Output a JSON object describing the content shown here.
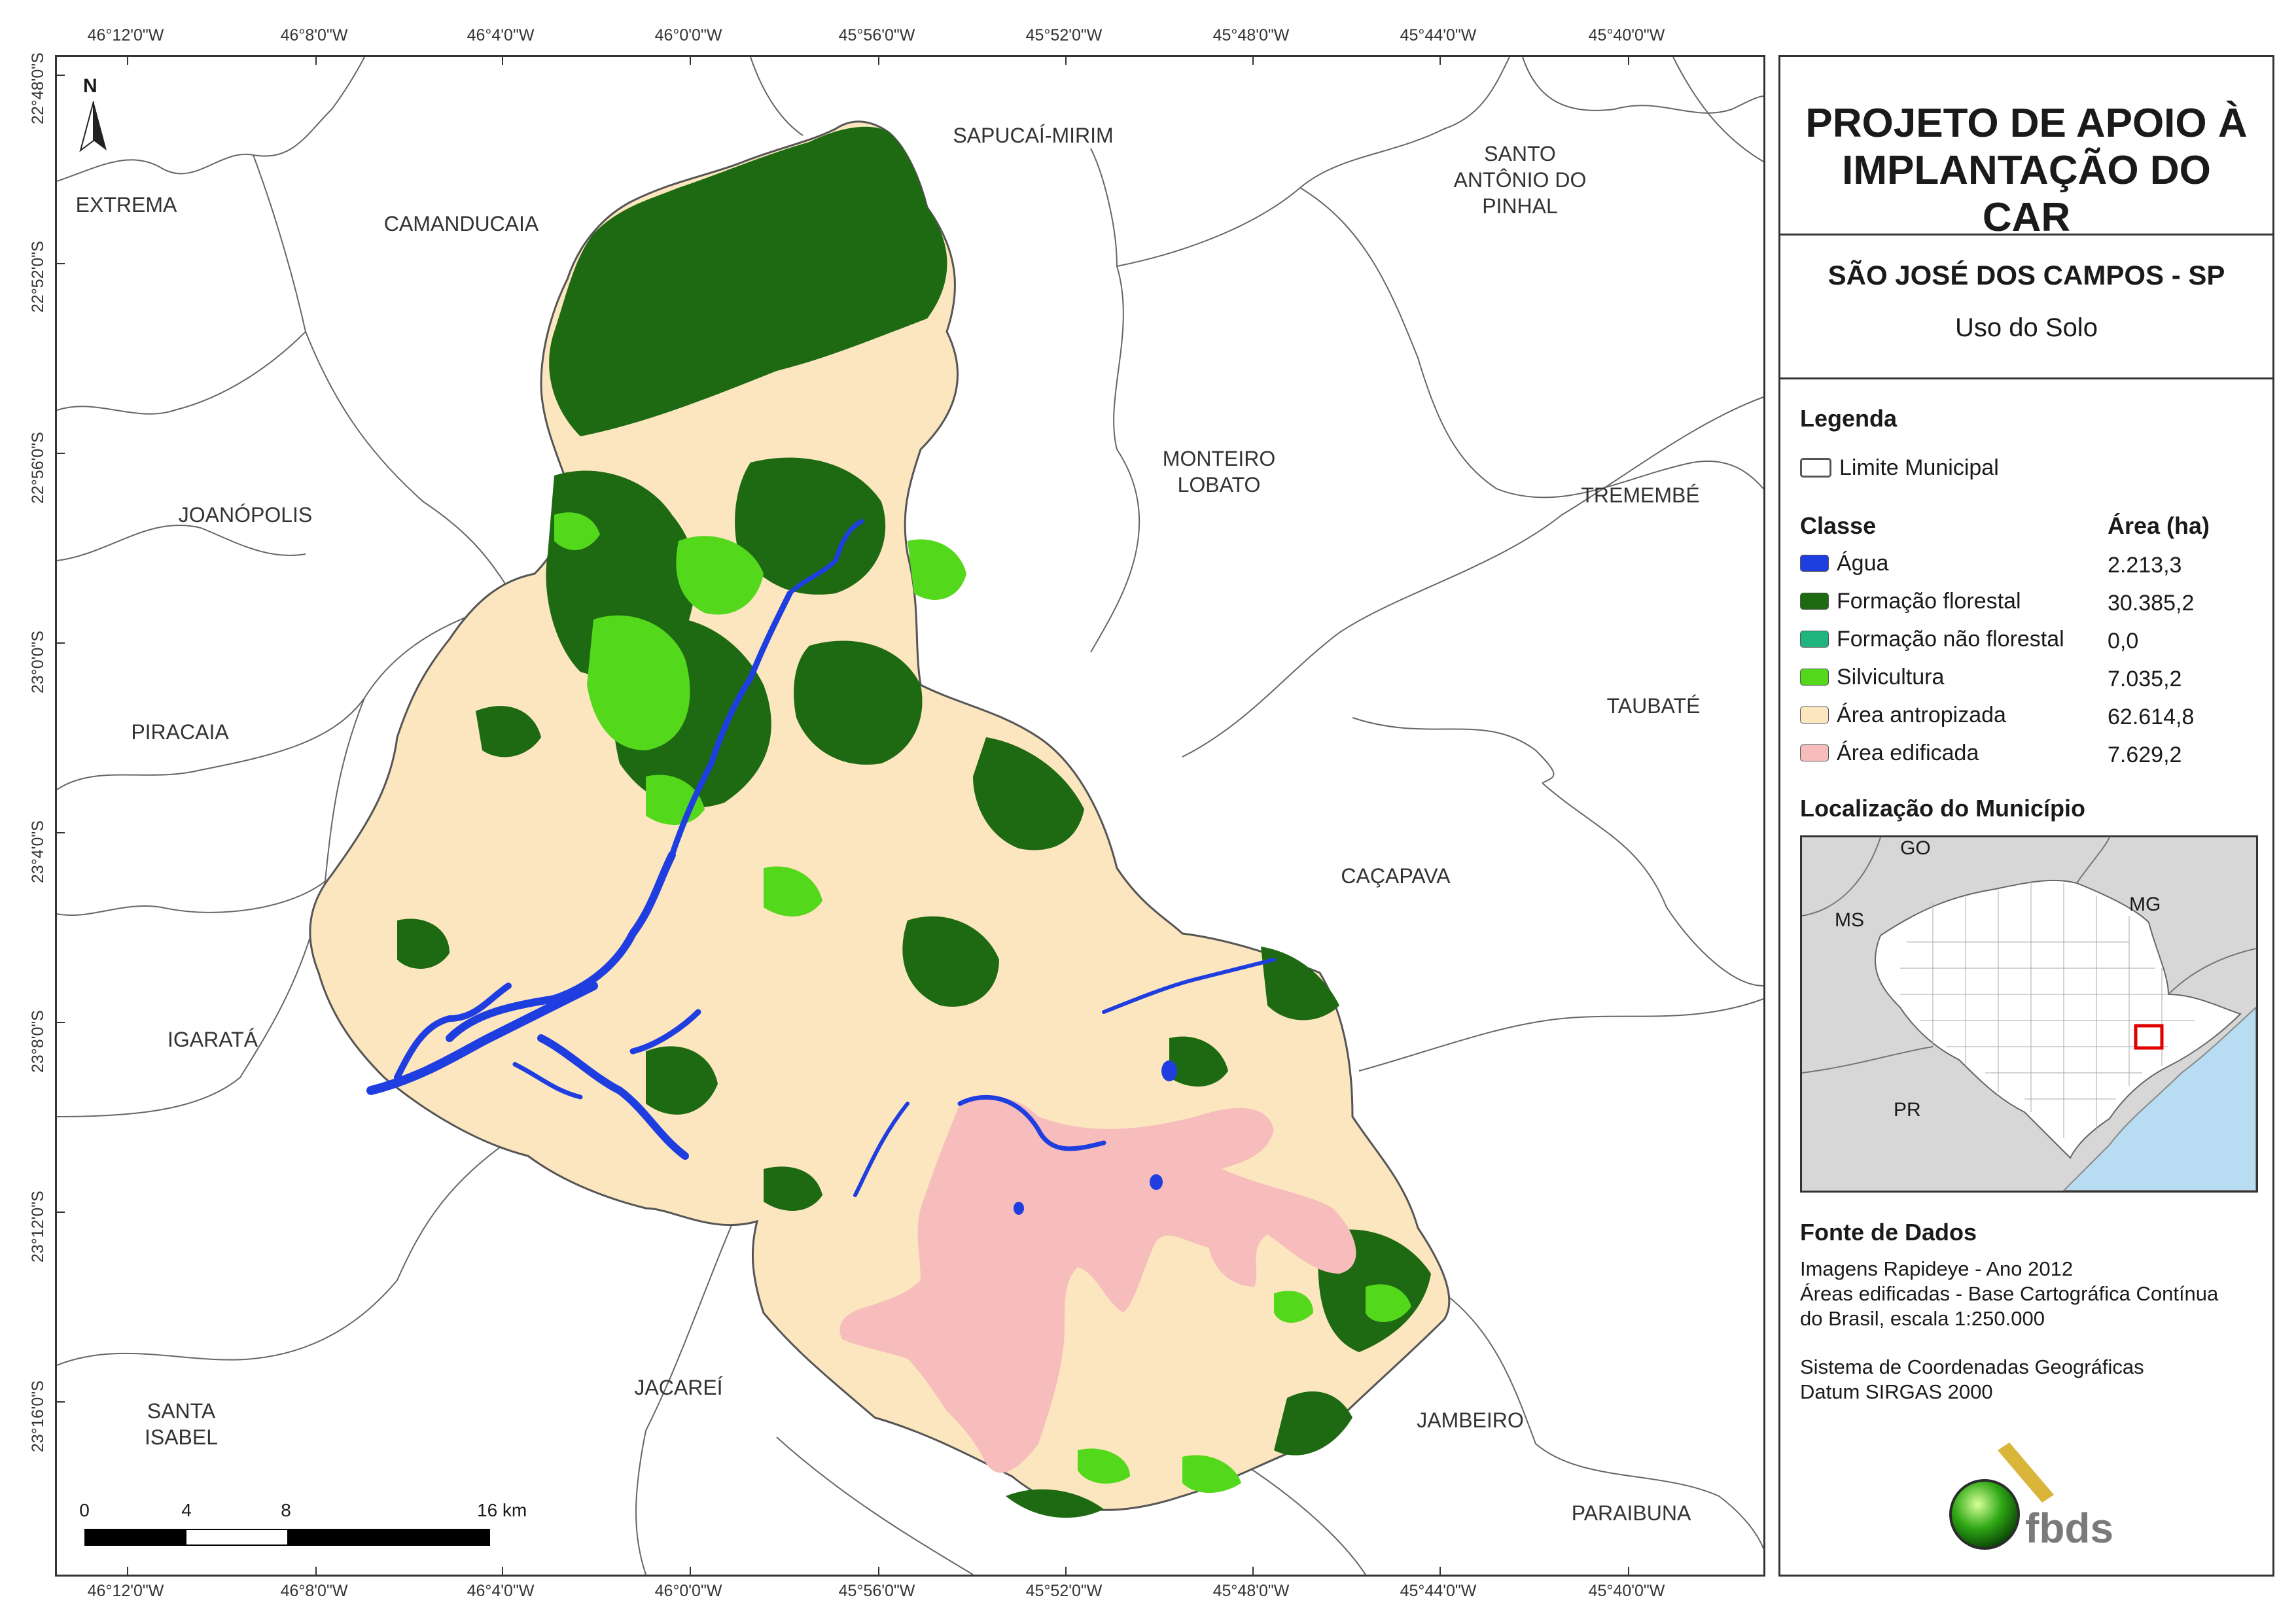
{
  "coords": {
    "top": [
      "46°12'0\"W",
      "46°8'0\"W",
      "46°4'0\"W",
      "46°0'0\"W",
      "45°56'0\"W",
      "45°52'0\"W",
      "45°48'0\"W",
      "45°44'0\"W",
      "45°40'0\"W"
    ],
    "bottom": [
      "46°12'0\"W",
      "46°8'0\"W",
      "46°4'0\"W",
      "46°0'0\"W",
      "45°56'0\"W",
      "45°52'0\"W",
      "45°48'0\"W",
      "45°44'0\"W",
      "45°40'0\"W"
    ],
    "left": [
      "22°48'0\"S",
      "22°52'0\"S",
      "22°56'0\"S",
      "23°0'0\"S",
      "23°4'0\"S",
      "23°8'0\"S",
      "23°12'0\"S",
      "23°16'0\"S"
    ]
  },
  "municipalities": [
    "SAPUCAÍ-MIRIM",
    "SANTO\nANTÔNIO DO\nPINHAL",
    "EXTREMA",
    "CAMANDUCAIA",
    "MONTEIRO\nLOBATO",
    "TREMEMBÉ",
    "JOANÓPOLIS",
    "TAUBATÉ",
    "PIRACAIA",
    "CAÇAPAVA",
    "IGARATÁ",
    "JACAREÍ",
    "SANTA\nISABEL",
    "JAMBEIRO",
    "PARAIBUNA"
  ],
  "north_label": "N",
  "scale": {
    "ticks": [
      "0",
      "4",
      "8",
      "16 km"
    ]
  },
  "panel": {
    "title": "PROJETO DE APOIO À IMPLANTAÇÃO DO CAR",
    "subtitle": "SÃO JOSÉ DOS CAMPOS - SP",
    "theme": "Uso do Solo",
    "legend_heading": "Legenda",
    "municipal_limit": "Limite Municipal",
    "class_heading": "Classe",
    "area_heading": "Área (ha)",
    "classes": [
      {
        "label": "Água",
        "area": "2.213,3",
        "color": "#1f3ee0"
      },
      {
        "label": "Formação florestal",
        "area": "30.385,2",
        "color": "#1e6a12"
      },
      {
        "label": "Formação não florestal",
        "area": "0,0",
        "color": "#20b47e"
      },
      {
        "label": "Silvicultura",
        "area": "7.035,2",
        "color": "#54d81c"
      },
      {
        "label": "Área antropizada",
        "area": "62.614,8",
        "color": "#fbe6c0"
      },
      {
        "label": "Área edificada",
        "area": "7.629,2",
        "color": "#f7bcbc"
      }
    ],
    "location_heading": "Localização do Município",
    "inset_labels": [
      "GO",
      "MS",
      "MG",
      "PR"
    ],
    "source_heading": "Fonte de Dados",
    "source_lines": [
      "Imagens Rapideye - Ano 2012",
      "Áreas edificadas - Base Cartográfica Contínua",
      "do Brasil, escala 1:250.000"
    ],
    "crs_lines": [
      "Sistema de Coordenadas Geográficas",
      "Datum SIRGAS 2000"
    ],
    "logo_text": "fbds"
  },
  "colors": {
    "water": "#1f3ee0",
    "forest": "#1e6a12",
    "silviculture": "#54d81c",
    "anthropic": "#fbe6c0",
    "urban": "#f7bcbc",
    "ocean": "#b8dcf2"
  }
}
